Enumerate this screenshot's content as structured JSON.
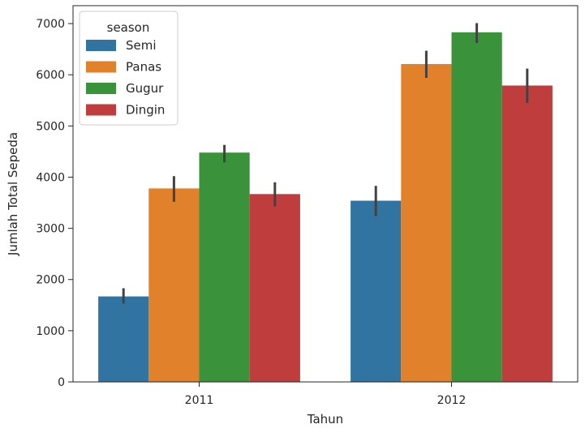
{
  "chart_data": {
    "type": "bar",
    "categories": [
      "2011",
      "2012"
    ],
    "series": [
      {
        "name": "Semi",
        "color": "#3274a1",
        "values": [
          1670,
          3540
        ],
        "err_low": [
          1530,
          3240
        ],
        "err_high": [
          1830,
          3830
        ]
      },
      {
        "name": "Panas",
        "color": "#e1812c",
        "values": [
          3780,
          6210
        ],
        "err_low": [
          3520,
          5940
        ],
        "err_high": [
          4020,
          6470
        ]
      },
      {
        "name": "Gugur",
        "color": "#3a923a",
        "values": [
          4480,
          6830
        ],
        "err_low": [
          4290,
          6620
        ],
        "err_high": [
          4630,
          7010
        ]
      },
      {
        "name": "Dingin",
        "color": "#c03d3e",
        "values": [
          3670,
          5790
        ],
        "err_low": [
          3430,
          5450
        ],
        "err_high": [
          3900,
          6120
        ]
      }
    ],
    "xlabel": "Tahun",
    "ylabel": "Jumlah Total Sepeda",
    "ylim": [
      0,
      7350
    ],
    "yticks": [
      0,
      1000,
      2000,
      3000,
      4000,
      5000,
      6000,
      7000
    ],
    "grid": false,
    "legend": {
      "title": "season",
      "position": "top-left"
    }
  }
}
